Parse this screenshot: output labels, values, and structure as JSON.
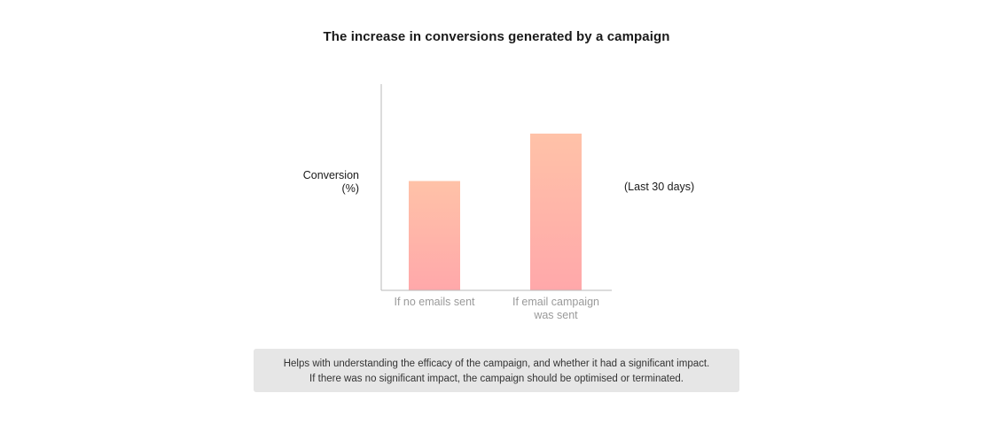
{
  "title": "The increase in conversions generated by a campaign",
  "ylabel_line1": "Conversion",
  "ylabel_line2": "(%)",
  "period_label": "(Last 30 days)",
  "note_line1": "Helps with understanding the efficacy of the campaign, and whether it had a significant impact.",
  "note_line2": "If there was no significant impact, the campaign should be optimised or terminated.",
  "colors": {
    "bar_top": "#ffc2a8",
    "bar_bottom": "#ffa8aa",
    "axis": "#b8b8b8"
  },
  "chart_data": {
    "type": "bar",
    "title": "The increase in conversions generated by a campaign",
    "ylabel": "Conversion (%)",
    "xlabel": "",
    "categories": [
      [
        "If no emails sent"
      ],
      [
        "If email campaign",
        "was sent"
      ]
    ],
    "values": [
      53,
      76
    ],
    "ylim": [
      0,
      100
    ],
    "grid": false,
    "annotation": "(Last 30 days)"
  }
}
